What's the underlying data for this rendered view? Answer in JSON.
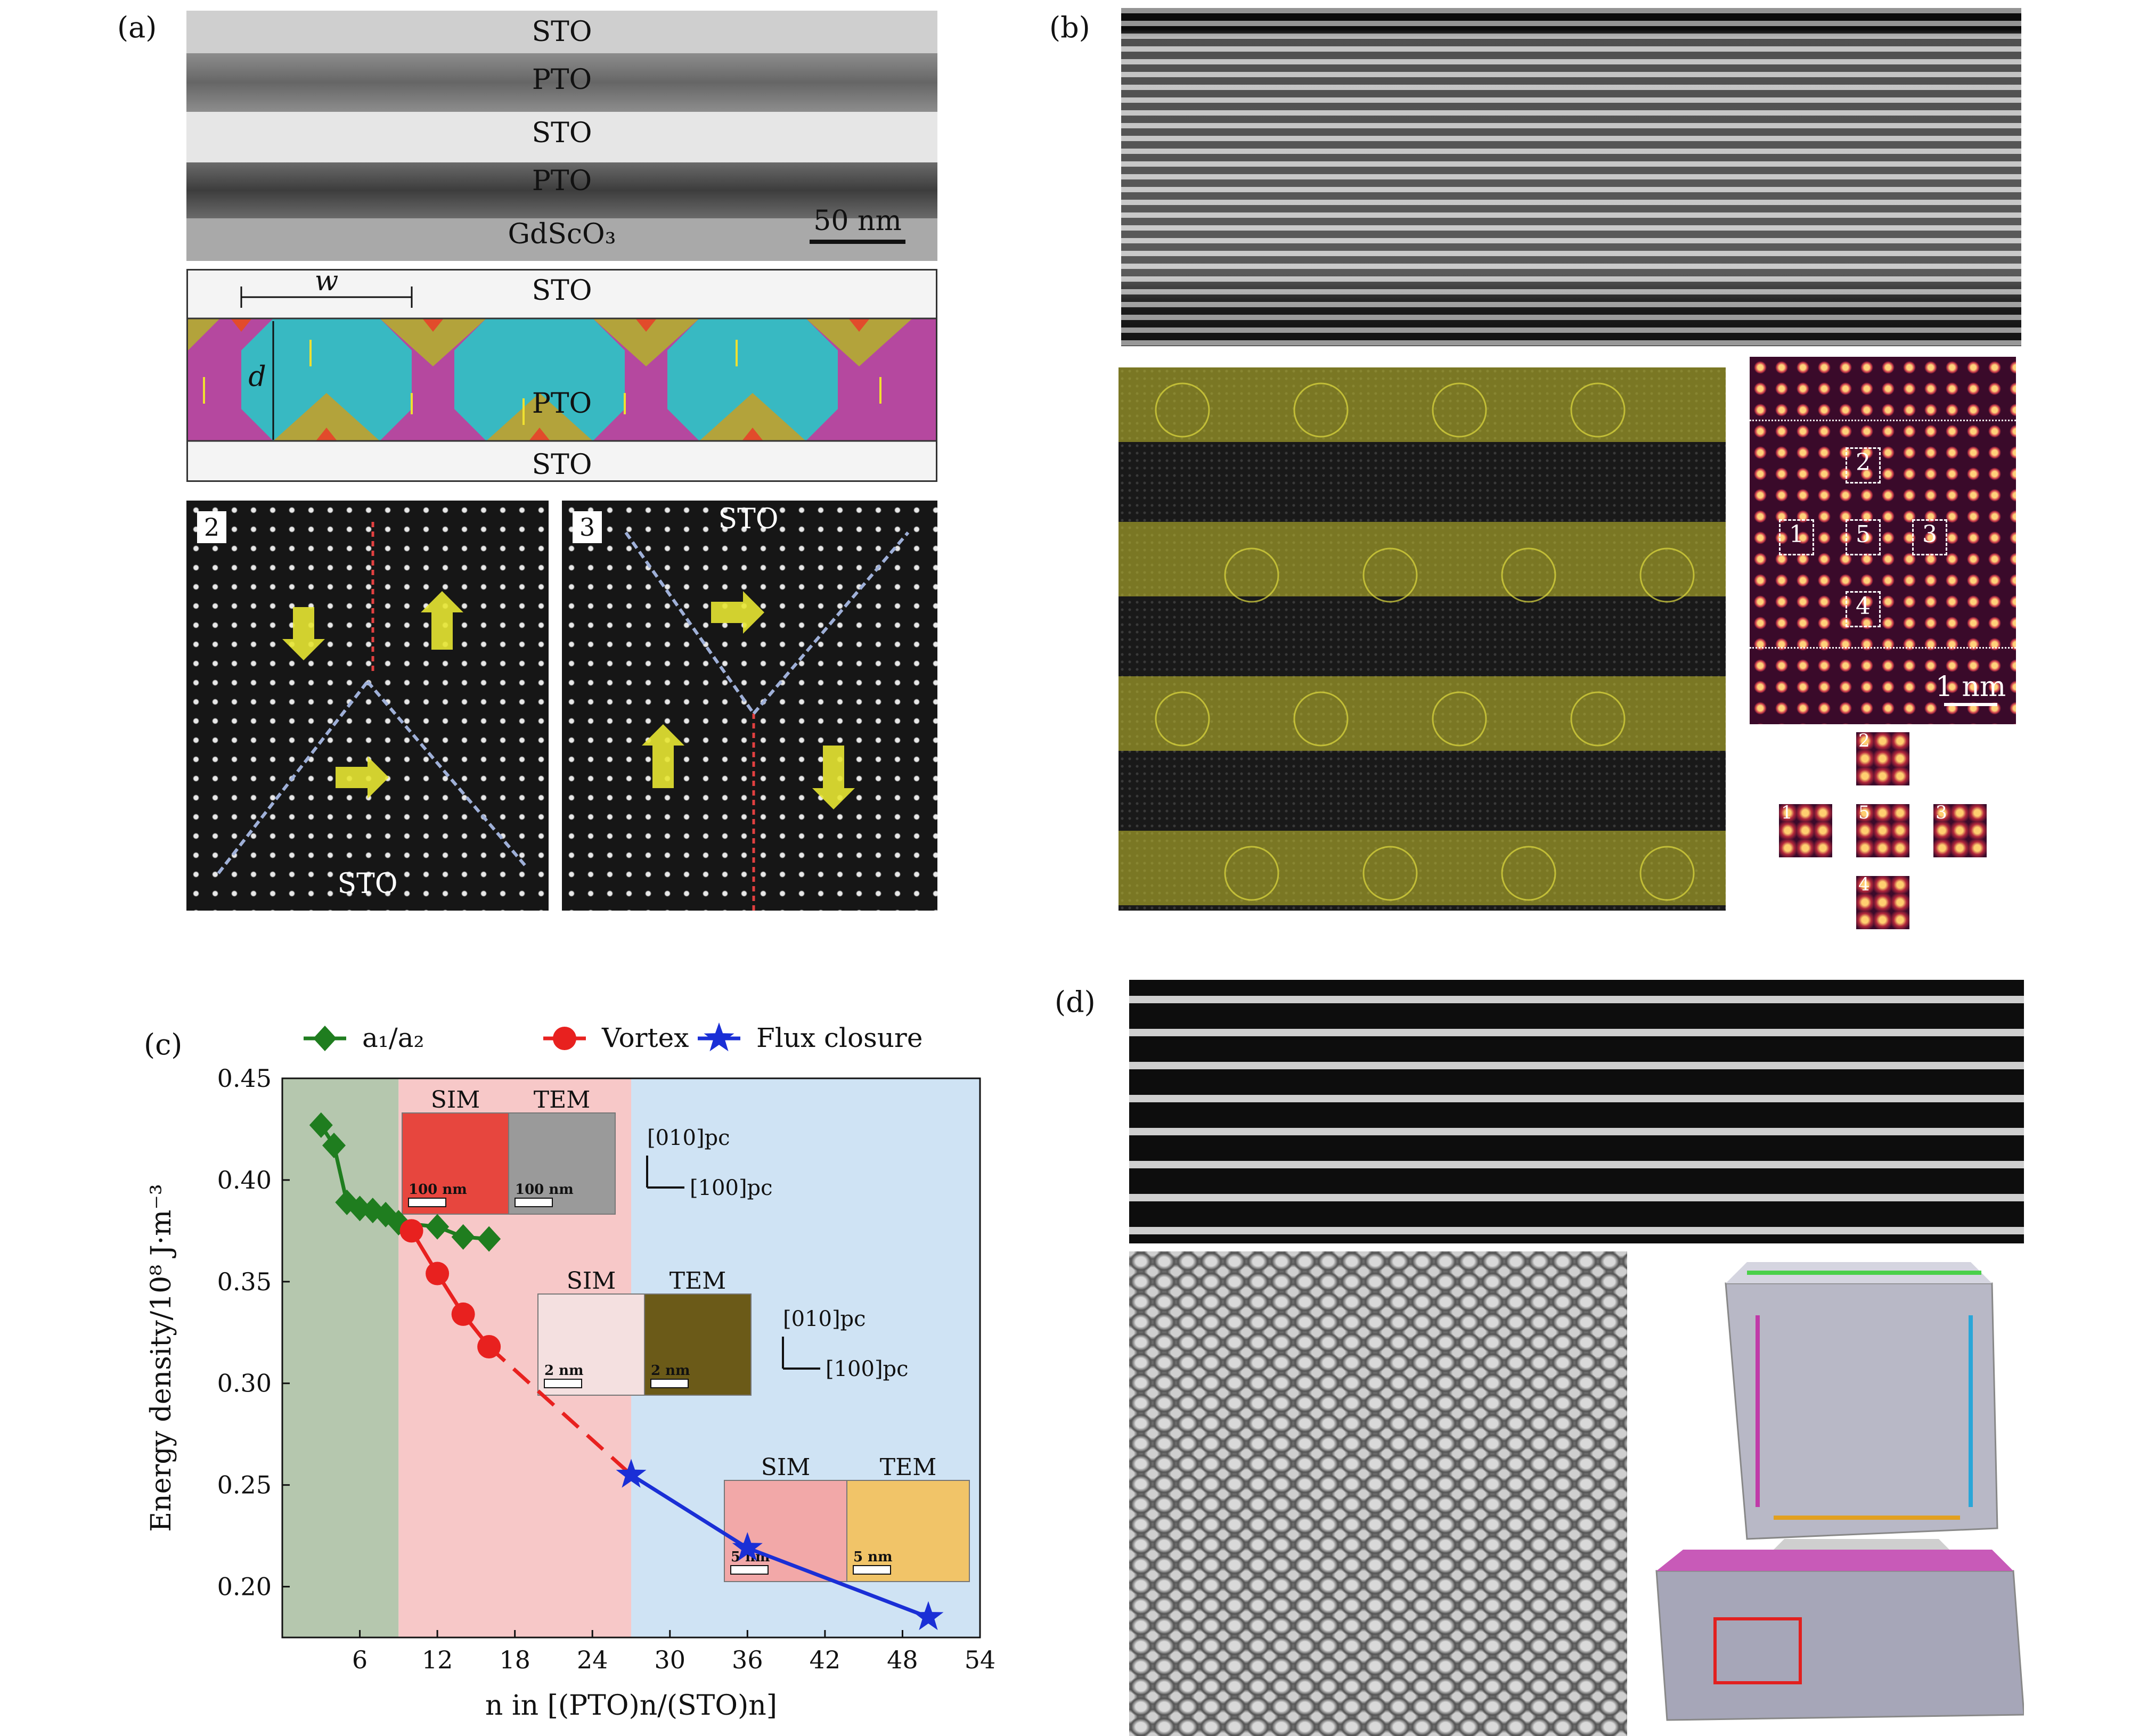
{
  "panels": {
    "a": {
      "label": "(a)",
      "tem_layers": [
        "STO",
        "PTO",
        "STO",
        "PTO",
        "GdScO₃"
      ],
      "scale_bar": "50 nm",
      "schematic": {
        "top": "STO",
        "middle": "PTO",
        "bottom": "STO",
        "w_label": "w",
        "d_label": "d"
      },
      "zoom_left": {
        "number": "2",
        "bottom_label": "STO"
      },
      "zoom_right": {
        "number": "3",
        "top_label": "STO"
      }
    },
    "b": {
      "label": "(b)",
      "scale_bar": "1 nm",
      "boxes": [
        "1",
        "2",
        "3",
        "4",
        "5"
      ],
      "mini": [
        "1",
        "2",
        "3",
        "4",
        "5"
      ]
    },
    "c": {
      "label": "(c)"
    },
    "d": {
      "label": "(d)"
    }
  },
  "chart_data": {
    "type": "line",
    "xlabel": "n in [(PTO)n/(STO)n]",
    "ylabel": "Energy density/10⁸ J·m⁻³",
    "xlim": [
      0,
      54
    ],
    "ylim": [
      0.175,
      0.45
    ],
    "xticks": [
      6,
      12,
      18,
      24,
      30,
      36,
      42,
      48,
      54
    ],
    "yticks": [
      0.2,
      0.25,
      0.3,
      0.35,
      0.4,
      0.45
    ],
    "regions": [
      {
        "from": 0,
        "to": 9,
        "color": "#b5c7ae"
      },
      {
        "from": 9,
        "to": 27,
        "color": "#f7c8c8"
      },
      {
        "from": 27,
        "to": 54,
        "color": "#cfe3f4"
      }
    ],
    "series": [
      {
        "name": "a₁/a₂",
        "color": "#1f7d1f",
        "marker": "diamond",
        "x": [
          3,
          4,
          5,
          6,
          7,
          8,
          9,
          12,
          14,
          16
        ],
        "y": [
          0.427,
          0.417,
          0.389,
          0.386,
          0.385,
          0.383,
          0.379,
          0.377,
          0.372,
          0.371
        ]
      },
      {
        "name": "Vortex",
        "color": "#e8211f",
        "marker": "circle",
        "x": [
          10,
          12,
          14,
          16
        ],
        "y": [
          0.375,
          0.354,
          0.334,
          0.318
        ],
        "dashed_to": {
          "x": 27,
          "y": 0.255
        }
      },
      {
        "name": "Flux closure",
        "color": "#1a2fd6",
        "marker": "star",
        "x": [
          27,
          36,
          50
        ],
        "y": [
          0.255,
          0.219,
          0.185
        ]
      }
    ],
    "insets": {
      "top": {
        "sim": "SIM",
        "tem": "TEM",
        "scale1": "100 nm",
        "scale2": "100 nm"
      },
      "mid": {
        "sim": "SIM",
        "tem": "TEM",
        "scale1": "2 nm",
        "scale2": "2 nm"
      },
      "low": {
        "sim": "SIM",
        "tem": "TEM",
        "scale1": "5 nm",
        "scale2": "5 nm"
      },
      "axes": {
        "vertical": "[010]pc",
        "horizontal": "[100]pc"
      }
    }
  }
}
